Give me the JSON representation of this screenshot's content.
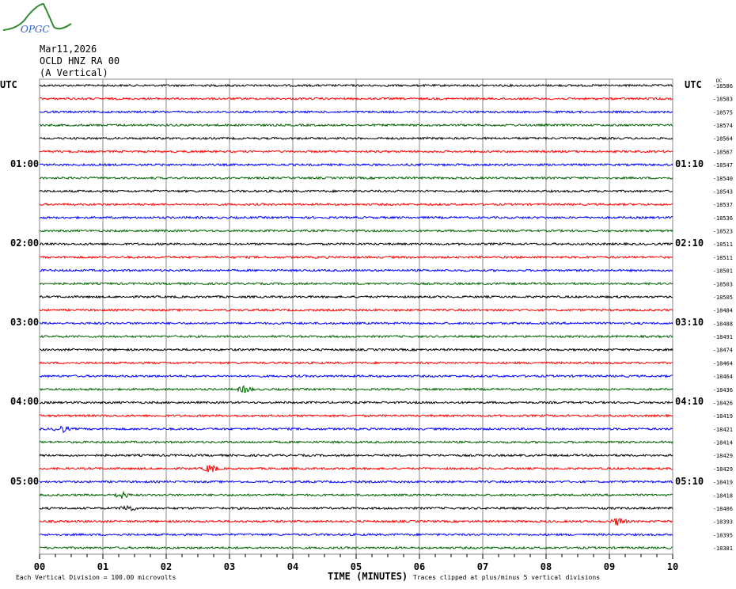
{
  "header": {
    "logo_text": "OPGC",
    "date": "Mar11,2026",
    "station": "OCLD HNZ RA 00",
    "component": "(A Vertical)",
    "left_tz": "UTC",
    "right_tz": "UTC",
    "dc_label": "DC"
  },
  "footer": {
    "scale_note": "Each Vertical Division =  100.00 microvolts",
    "clip_note": "Traces clipped at plus/minus 5 vertical divisions"
  },
  "chart_data": {
    "type": "line",
    "xlabel": "TIME (MINUTES)",
    "xlim": [
      0,
      10
    ],
    "x_ticks": [
      "00",
      "01",
      "02",
      "03",
      "04",
      "05",
      "06",
      "07",
      "08",
      "09",
      "10"
    ],
    "trace_colors": [
      "#000000",
      "#ff0000",
      "#0000ff",
      "#006400"
    ],
    "trace_count": 36,
    "minutes_per_trace": 10,
    "left_hour_labels": [
      {
        "row": 6,
        "label": "01:00"
      },
      {
        "row": 12,
        "label": "02:00"
      },
      {
        "row": 18,
        "label": "03:00"
      },
      {
        "row": 24,
        "label": "04:00"
      },
      {
        "row": 30,
        "label": "05:00"
      }
    ],
    "right_hour_labels": [
      {
        "row": 6,
        "label": "01:10"
      },
      {
        "row": 12,
        "label": "02:10"
      },
      {
        "row": 18,
        "label": "03:10"
      },
      {
        "row": 24,
        "label": "04:10"
      },
      {
        "row": 30,
        "label": "05:10"
      }
    ],
    "dc_offsets": [
      "-18586",
      "-18583",
      "-18575",
      "-18574",
      "-18564",
      "-18567",
      "-18547",
      "-18540",
      "-18543",
      "-18537",
      "-18536",
      "-18523",
      "-18511",
      "-18511",
      "-18501",
      "-18503",
      "-18505",
      "-18484",
      "-18488",
      "-18491",
      "-18474",
      "-18464",
      "-18464",
      "-18436",
      "-18426",
      "-18419",
      "-18421",
      "-18414",
      "-18429",
      "-18429",
      "-18419",
      "-18418",
      "-18406",
      "-18393",
      "-18395",
      "-18381"
    ],
    "events": [
      {
        "row": 23,
        "minute": 3.25,
        "amplitude": 1.0
      },
      {
        "row": 26,
        "minute": 0.35,
        "amplitude": 1.0
      },
      {
        "row": 29,
        "minute": 2.7,
        "amplitude": 1.3
      },
      {
        "row": 31,
        "minute": 1.3,
        "amplitude": 1.0
      },
      {
        "row": 32,
        "minute": 1.4,
        "amplitude": 1.0
      },
      {
        "row": 33,
        "minute": 9.15,
        "amplitude": 1.3
      }
    ]
  }
}
